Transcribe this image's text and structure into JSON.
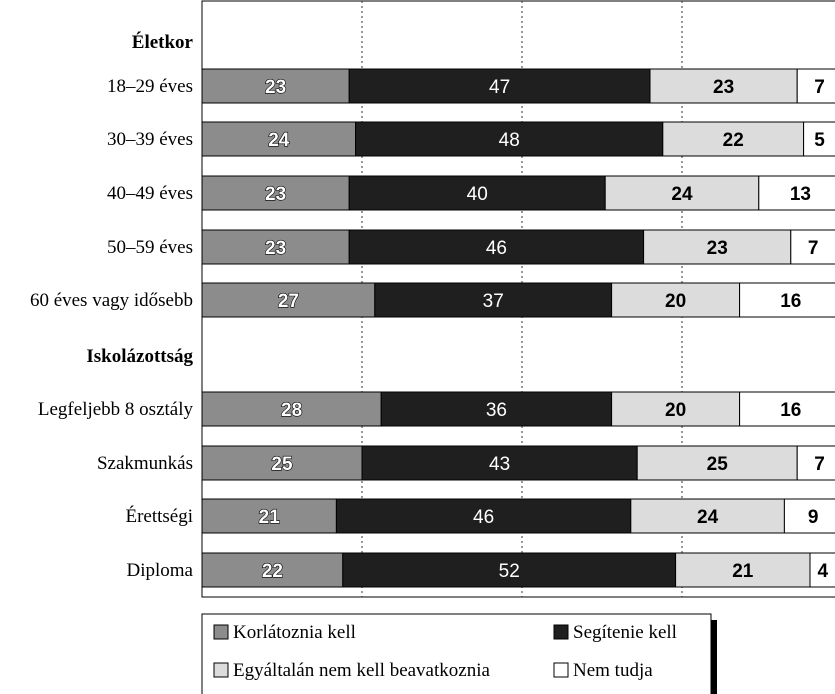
{
  "chart_data": {
    "type": "bar",
    "orientation": "horizontal",
    "stacked": true,
    "xlim": [
      0,
      100
    ],
    "grid": "vertical dotted lines at 25, 50, 75",
    "legend_position": "bottom",
    "series": [
      {
        "name": "Korlátoznia kell",
        "color": "#8c8c8c"
      },
      {
        "name": "Segítenie kell",
        "color": "#1f1f1f"
      },
      {
        "name": "Egyáltalán nem kell beavatkoznia",
        "color": "#dcdcdc"
      },
      {
        "name": "Nem tudja",
        "color": "#ffffff"
      }
    ],
    "groups": [
      {
        "label": "Életkor",
        "rows": [
          {
            "label": "18–29 éves",
            "values": [
              23,
              47,
              23,
              7
            ]
          },
          {
            "label": "30–39 éves",
            "values": [
              24,
              48,
              22,
              5
            ]
          },
          {
            "label": "40–49 éves",
            "values": [
              23,
              40,
              24,
              13
            ]
          },
          {
            "label": "50–59 éves",
            "values": [
              23,
              46,
              23,
              7
            ]
          },
          {
            "label": "60 éves vagy idősebb",
            "values": [
              27,
              37,
              20,
              16
            ]
          }
        ]
      },
      {
        "label": "Iskolázottság",
        "rows": [
          {
            "label": "Legfeljebb 8 osztály",
            "values": [
              28,
              36,
              20,
              16
            ]
          },
          {
            "label": "Szakmunkás",
            "values": [
              25,
              43,
              25,
              7
            ]
          },
          {
            "label": "Érettségi",
            "values": [
              21,
              46,
              24,
              9
            ]
          },
          {
            "label": "Diploma",
            "values": [
              22,
              52,
              21,
              4
            ]
          }
        ]
      }
    ]
  }
}
